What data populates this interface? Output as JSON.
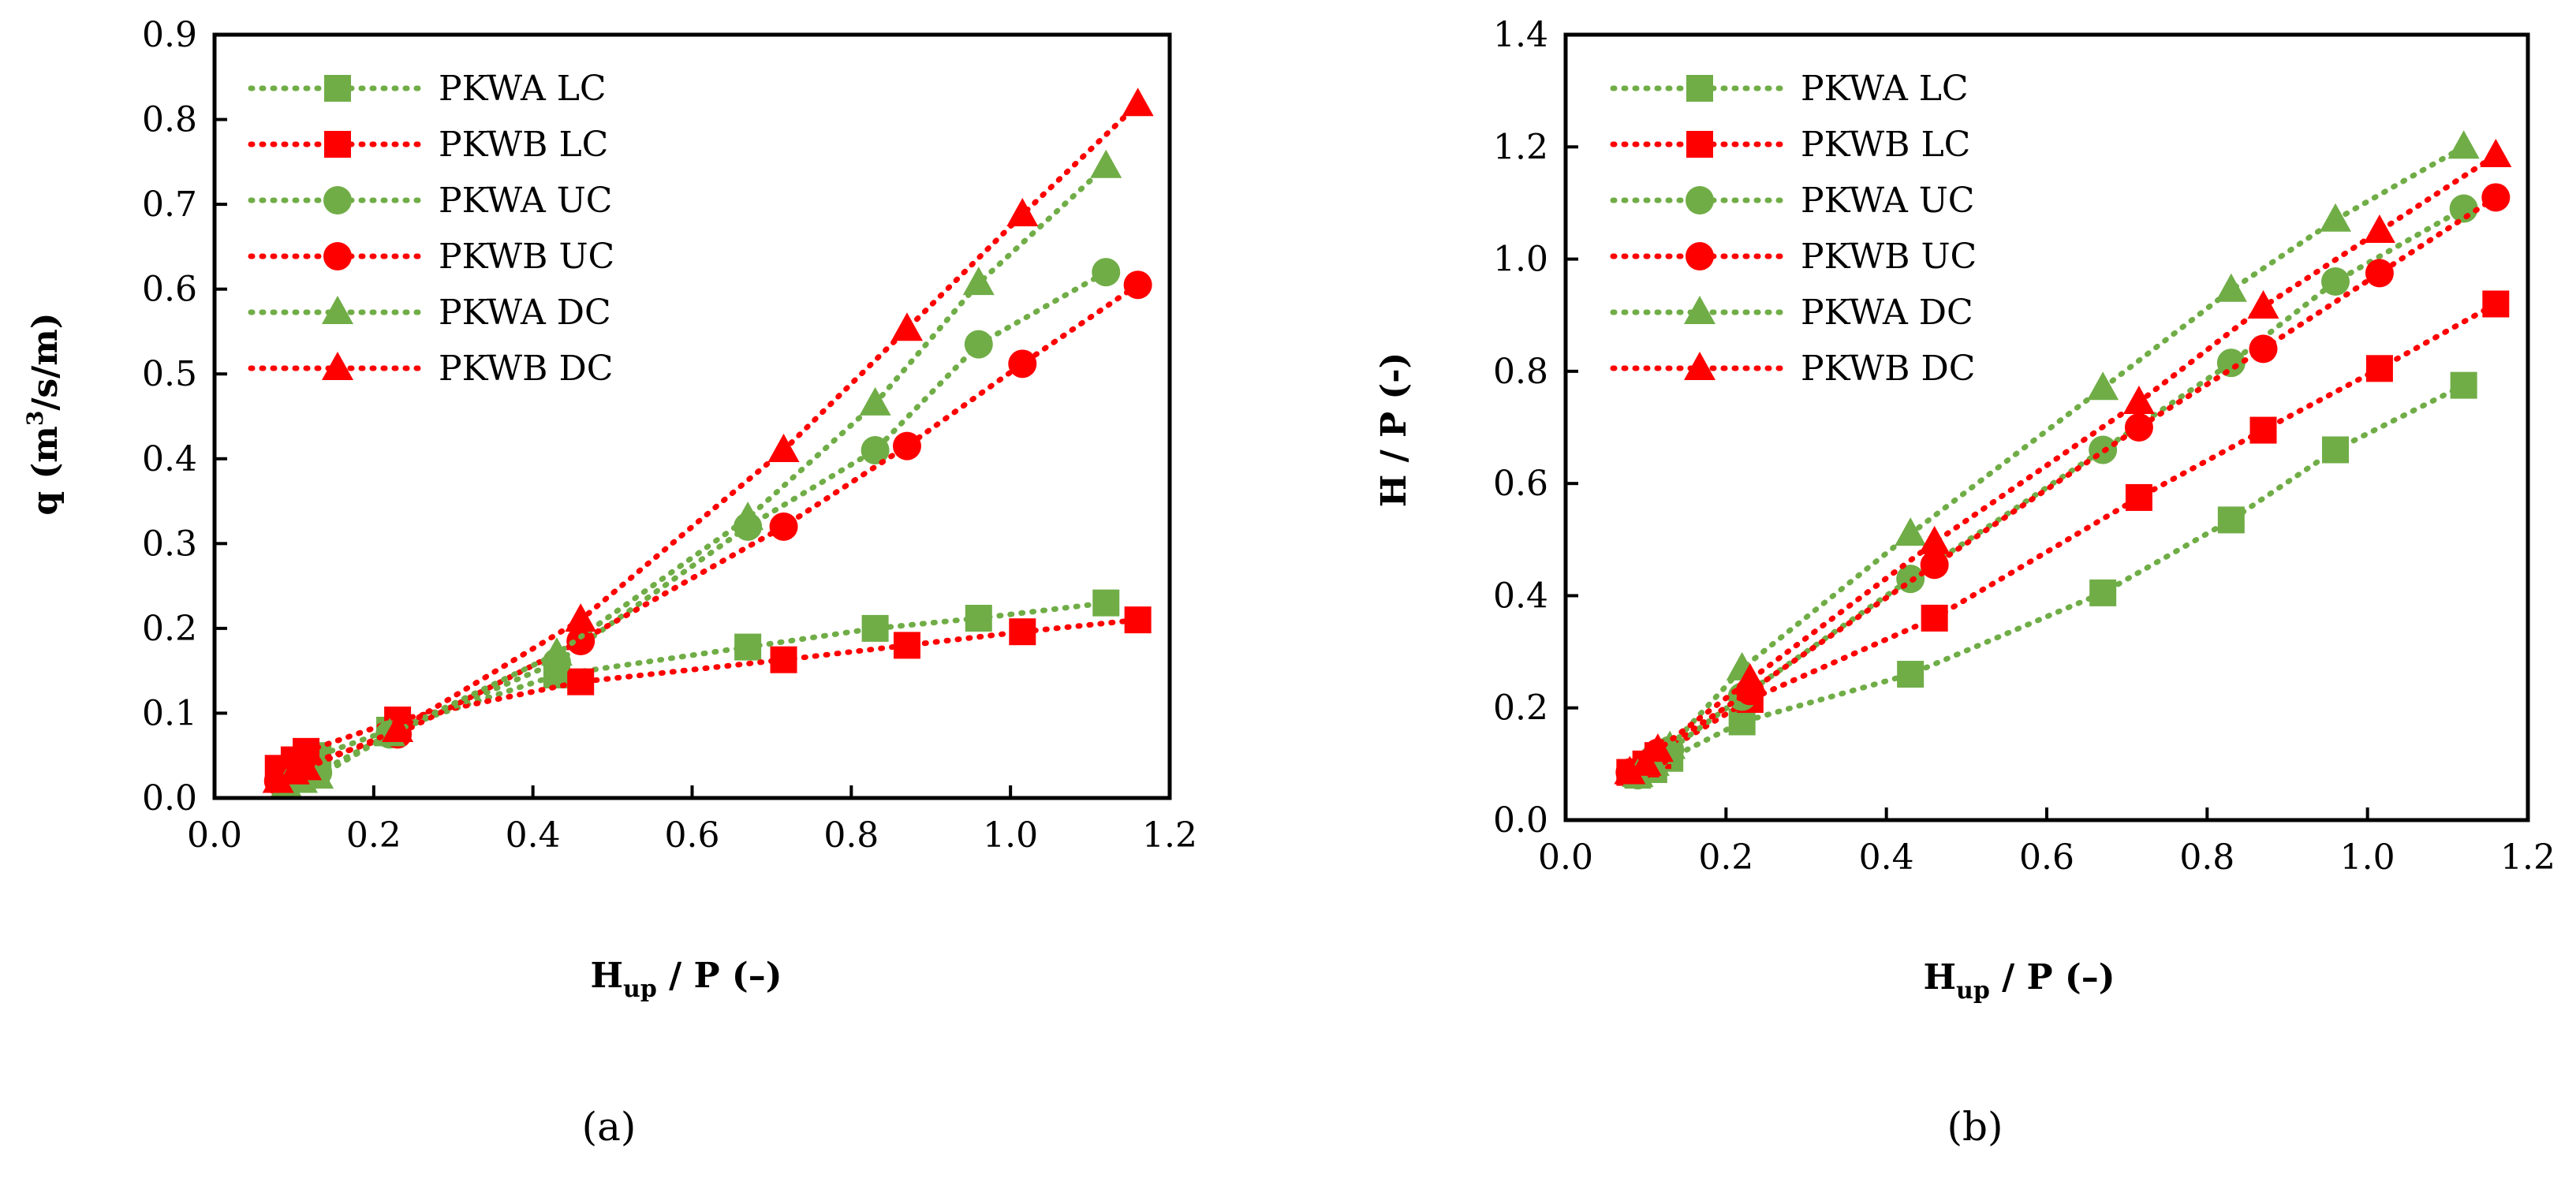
{
  "colors": {
    "green": "#70AD47",
    "red": "#FF0000",
    "axis": "#000000"
  },
  "chart_data": [
    {
      "type": "line",
      "panel_label": "(a)",
      "ylabel": "q (m³/s/m)",
      "ylabel_main": "q (m",
      "ylabel_sup": "3",
      "ylabel_tail": "/s/m)",
      "xlabel_main": "H",
      "xlabel_sub": "up",
      "xlabel_tail": " / P (–)",
      "xlim": [
        0,
        1.2
      ],
      "ylim": [
        0,
        0.9
      ],
      "xticks": [
        "0.0",
        "0.2",
        "0.4",
        "0.6",
        "0.8",
        "1.0",
        "1.2"
      ],
      "yticks": [
        "0.0",
        "0.1",
        "0.2",
        "0.3",
        "0.4",
        "0.5",
        "0.6",
        "0.7",
        "0.8",
        "0.9"
      ],
      "grid": false,
      "legend_position": "top-left",
      "series": [
        {
          "name": "PKWA LC",
          "color": "green",
          "marker": "square",
          "x": [
            0.09,
            0.1,
            0.12,
            0.13,
            0.22,
            0.43,
            0.67,
            0.83,
            0.96,
            1.12
          ],
          "y": [
            0.02,
            0.03,
            0.04,
            0.05,
            0.08,
            0.145,
            0.178,
            0.2,
            0.212,
            0.23
          ]
        },
        {
          "name": "PKWB LC",
          "color": "red",
          "marker": "square",
          "x": [
            0.08,
            0.1,
            0.115,
            0.23,
            0.46,
            0.715,
            0.87,
            1.015,
            1.16
          ],
          "y": [
            0.035,
            0.045,
            0.055,
            0.092,
            0.137,
            0.163,
            0.18,
            0.196,
            0.21
          ]
        },
        {
          "name": "PKWA UC",
          "color": "green",
          "marker": "circle",
          "x": [
            0.09,
            0.11,
            0.13,
            0.22,
            0.43,
            0.67,
            0.83,
            0.96,
            1.12
          ],
          "y": [
            0.015,
            0.025,
            0.03,
            0.075,
            0.16,
            0.32,
            0.41,
            0.535,
            0.62
          ]
        },
        {
          "name": "PKWB UC",
          "color": "red",
          "marker": "circle",
          "x": [
            0.08,
            0.1,
            0.115,
            0.23,
            0.46,
            0.715,
            0.87,
            1.015,
            1.16
          ],
          "y": [
            0.02,
            0.03,
            0.04,
            0.075,
            0.185,
            0.32,
            0.415,
            0.512,
            0.605
          ]
        },
        {
          "name": "PKWA DC",
          "color": "green",
          "marker": "triangle",
          "x": [
            0.09,
            0.11,
            0.13,
            0.22,
            0.43,
            0.67,
            0.83,
            0.96,
            1.12
          ],
          "y": [
            0.015,
            0.02,
            0.025,
            0.075,
            0.17,
            0.33,
            0.465,
            0.607,
            0.745
          ]
        },
        {
          "name": "PKWB DC",
          "color": "red",
          "marker": "triangle",
          "x": [
            0.08,
            0.1,
            0.115,
            0.23,
            0.46,
            0.715,
            0.87,
            1.015,
            1.16
          ],
          "y": [
            0.02,
            0.03,
            0.035,
            0.08,
            0.21,
            0.41,
            0.553,
            0.688,
            0.818
          ]
        }
      ]
    },
    {
      "type": "line",
      "panel_label": "(b)",
      "ylabel": "H / P (-)",
      "ylabel_main": "H / P (-)",
      "ylabel_sup": "",
      "ylabel_tail": "",
      "xlabel_main": "H",
      "xlabel_sub": "up",
      "xlabel_tail": " / P (–)",
      "xlim": [
        0,
        1.2
      ],
      "ylim": [
        0,
        1.4
      ],
      "xticks": [
        "0.0",
        "0.2",
        "0.4",
        "0.6",
        "0.8",
        "1.0",
        "1.2"
      ],
      "yticks": [
        "0.0",
        "0.2",
        "0.4",
        "0.6",
        "0.8",
        "1.0",
        "1.2",
        "1.4"
      ],
      "grid": false,
      "legend_position": "top-left",
      "series": [
        {
          "name": "PKWA LC",
          "color": "green",
          "marker": "square",
          "x": [
            0.09,
            0.11,
            0.13,
            0.22,
            0.43,
            0.67,
            0.83,
            0.96,
            1.12
          ],
          "y": [
            0.08,
            0.09,
            0.11,
            0.175,
            0.26,
            0.405,
            0.535,
            0.66,
            0.775
          ]
        },
        {
          "name": "PKWB LC",
          "color": "red",
          "marker": "square",
          "x": [
            0.08,
            0.1,
            0.115,
            0.23,
            0.46,
            0.715,
            0.87,
            1.015,
            1.16
          ],
          "y": [
            0.085,
            0.1,
            0.115,
            0.215,
            0.36,
            0.575,
            0.695,
            0.805,
            0.92
          ]
        },
        {
          "name": "PKWA UC",
          "color": "green",
          "marker": "circle",
          "x": [
            0.09,
            0.11,
            0.13,
            0.22,
            0.43,
            0.67,
            0.83,
            0.96,
            1.12
          ],
          "y": [
            0.08,
            0.11,
            0.125,
            0.22,
            0.43,
            0.66,
            0.815,
            0.96,
            1.09
          ]
        },
        {
          "name": "PKWB UC",
          "color": "red",
          "marker": "circle",
          "x": [
            0.08,
            0.1,
            0.115,
            0.23,
            0.46,
            0.715,
            0.87,
            1.015,
            1.16
          ],
          "y": [
            0.085,
            0.1,
            0.12,
            0.23,
            0.455,
            0.7,
            0.84,
            0.975,
            1.11
          ]
        },
        {
          "name": "PKWA DC",
          "color": "green",
          "marker": "triangle",
          "x": [
            0.09,
            0.11,
            0.13,
            0.22,
            0.43,
            0.67,
            0.83,
            0.96,
            1.12
          ],
          "y": [
            0.08,
            0.1,
            0.13,
            0.27,
            0.51,
            0.77,
            0.945,
            1.07,
            1.2
          ]
        },
        {
          "name": "PKWB DC",
          "color": "red",
          "marker": "triangle",
          "x": [
            0.08,
            0.1,
            0.115,
            0.23,
            0.46,
            0.715,
            0.87,
            1.015,
            1.16
          ],
          "y": [
            0.085,
            0.1,
            0.125,
            0.25,
            0.495,
            0.745,
            0.915,
            1.05,
            1.185
          ]
        }
      ]
    }
  ]
}
